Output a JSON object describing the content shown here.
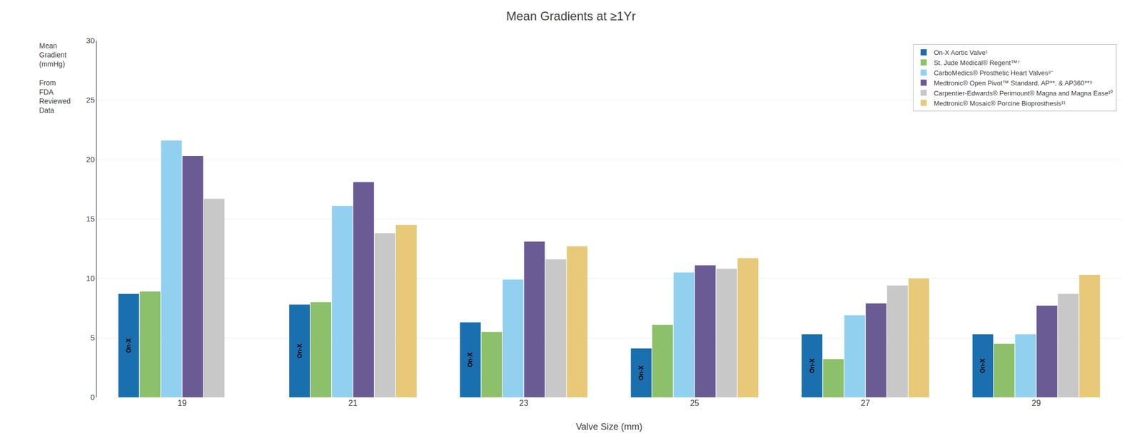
{
  "chart_data": {
    "type": "bar",
    "title": "Mean Gradients at ≥1Yr",
    "xlabel": "Valve Size (mm)",
    "ylabel": "Mean\nGradient\n(mmHg)\n\nFrom\nFDA\nReviewed\nData",
    "categories": [
      "19",
      "21",
      "23",
      "25",
      "27",
      "29"
    ],
    "series": [
      {
        "name": "On-X Aortic Valve¹",
        "color": "#1a6faf",
        "values": [
          8.7,
          7.8,
          6.3,
          4.1,
          5.3,
          5.3
        ]
      },
      {
        "name": "St. Jude Medical® Regent™⁷",
        "color": "#8dc06b",
        "values": [
          8.9,
          8.0,
          5.5,
          6.1,
          3.2,
          4.5
        ]
      },
      {
        "name": "CarboMedics® Prosthetic Heart Valves⁸⁻",
        "color": "#92d0f0",
        "values": [
          21.6,
          16.1,
          9.9,
          10.5,
          6.9,
          5.3
        ]
      },
      {
        "name": "Medtronic® Open Pivot™ Standard, AP**, & AP360**⁹",
        "color": "#6b5b95",
        "values": [
          20.3,
          18.1,
          13.1,
          11.1,
          7.9,
          7.7
        ]
      },
      {
        "name": "Carpentier-Edwards® Perimount® Magna and Magna Ease¹⁰",
        "color": "#c8c8c8",
        "values": [
          16.7,
          13.8,
          11.6,
          10.8,
          9.4,
          8.7
        ]
      },
      {
        "name": "Medtronic® Mosaic® Porcine Bioprosthesis¹¹",
        "color": "#e8c97a",
        "values": [
          null,
          14.5,
          12.7,
          11.7,
          10.0,
          10.3
        ]
      }
    ],
    "annotations": [
      {
        "text": "On-X",
        "x": "19",
        "series": "On-X Aortic Valve¹"
      },
      {
        "text": "On-X",
        "x": "21",
        "series": "On-X Aortic Valve¹"
      },
      {
        "text": "On-X",
        "x": "23",
        "series": "On-X Aortic Valve¹"
      },
      {
        "text": "On-X",
        "x": "25",
        "series": "On-X Aortic Valve¹"
      },
      {
        "text": "On-X",
        "x": "27",
        "series": "On-X Aortic Valve¹"
      },
      {
        "text": "On-X",
        "x": "29",
        "series": "On-X Aortic Valve¹"
      }
    ],
    "ylim": [
      0,
      30
    ],
    "yticks": [
      0,
      5,
      10,
      15,
      20,
      25,
      30
    ],
    "grid": true,
    "legend": "upper right"
  }
}
